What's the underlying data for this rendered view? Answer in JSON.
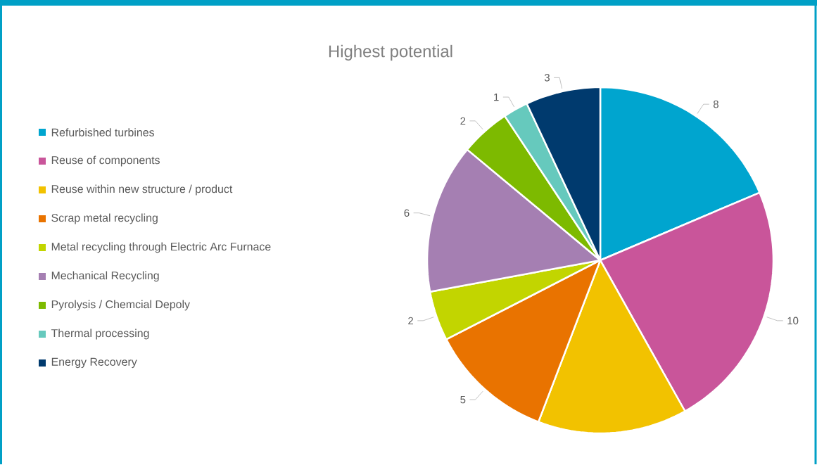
{
  "chart_data": {
    "type": "pie",
    "title": "Highest potential",
    "categories": [
      "Refurbished turbines",
      "Reuse of components",
      "Reuse within new structure / product",
      "Scrap metal recycling",
      "Metal recycling through Electric Arc Furnace",
      "Mechanical Recycling",
      "Pyrolysis / Chemcial Depoly",
      "Thermal processing",
      "Energy Recovery"
    ],
    "values": [
      8,
      10,
      6,
      5,
      2,
      6,
      2,
      1,
      3
    ],
    "value_labels": [
      "8",
      "10",
      null,
      "5",
      "2",
      "6",
      "2",
      "1",
      "3"
    ],
    "colors": [
      "#00a5cf",
      "#c9559a",
      "#f2c200",
      "#e97300",
      "#c2d500",
      "#a57fb2",
      "#7dba00",
      "#66c9bd",
      "#003a6e"
    ],
    "legend": "left"
  }
}
